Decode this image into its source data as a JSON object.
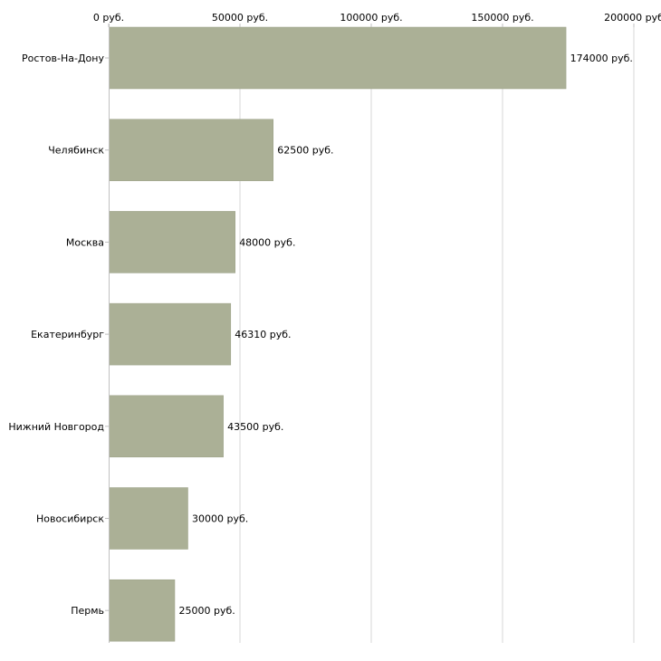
{
  "chart_data": {
    "type": "bar",
    "orientation": "horizontal",
    "categories": [
      "Ростов-На-Дону",
      "Челябинск",
      "Москва",
      "Екатеринбург",
      "Нижний Новгород",
      "Новосибирск",
      "Пермь"
    ],
    "values": [
      174000,
      62500,
      48000,
      46310,
      43500,
      30000,
      25000
    ],
    "data_labels": [
      "174000 руб.",
      "62500 руб.",
      "48000 руб.",
      "46310 руб.",
      "43500 руб.",
      "30000 руб.",
      "25000 руб."
    ],
    "x_ticks": [
      0,
      50000,
      100000,
      150000,
      200000
    ],
    "x_tick_labels": [
      "0 руб.",
      "50000 руб.",
      "100000 руб.",
      "150000 руб.",
      "200000 руб"
    ],
    "xlim": [
      0,
      200000
    ],
    "axis_position": "top",
    "title": "",
    "xlabel": "",
    "ylabel": "",
    "grid": true,
    "colors": {
      "bar": "#abb096",
      "bar_edge": "#9aa085",
      "grid": "#d7d7d7",
      "axis": "#c0c0c0",
      "text": "#000000"
    }
  }
}
